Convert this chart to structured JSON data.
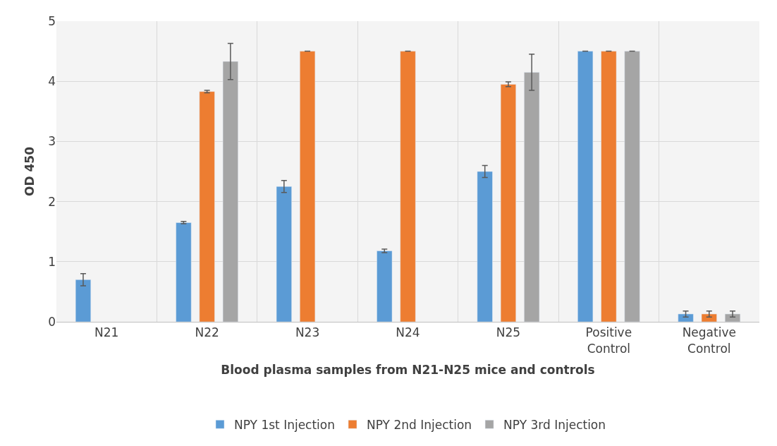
{
  "chart_data": {
    "type": "bar",
    "xlabel": "Blood plasma samples from N21-N25 mice and controls",
    "ylabel": "OD 450",
    "categories": [
      "N21",
      "N22",
      "N23",
      "N24",
      "N25",
      "Positive Control",
      "Negative Control"
    ],
    "series": [
      {
        "name": "NPY 1st Injection",
        "color": "#5b9bd5",
        "values": [
          0.7,
          1.65,
          2.25,
          1.18,
          2.5,
          4.5,
          0.13
        ],
        "errors": [
          0.1,
          0.02,
          0.1,
          0.03,
          0.1,
          null,
          0.05
        ]
      },
      {
        "name": "NPY 2nd Injection",
        "color": "#ed7d31",
        "values": [
          null,
          3.83,
          4.5,
          4.5,
          3.95,
          4.5,
          0.13
        ],
        "errors": [
          null,
          0.02,
          null,
          null,
          0.04,
          null,
          0.05
        ]
      },
      {
        "name": "NPY 3rd Injection",
        "color": "#a5a5a5",
        "values": [
          null,
          4.33,
          null,
          null,
          4.15,
          4.5,
          0.13
        ],
        "errors": [
          null,
          0.3,
          null,
          null,
          0.3,
          null,
          0.05
        ]
      }
    ],
    "ylim": [
      0,
      5
    ],
    "yticks": [
      0,
      1,
      2,
      3,
      4,
      5
    ],
    "grid": true,
    "legend": "bottom"
  }
}
